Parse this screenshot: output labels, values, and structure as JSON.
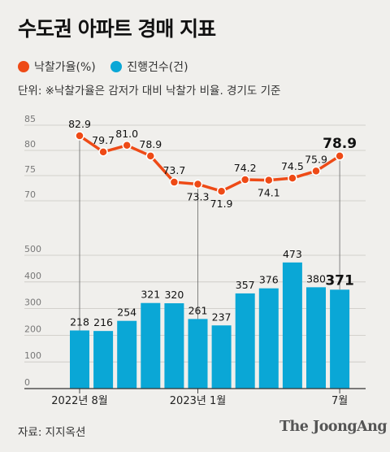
{
  "title": "수도권 아파트 경매 지표",
  "legend": [
    {
      "label": "낙찰가율(%)",
      "color": "#ee4a16"
    },
    {
      "label": "진행건수(건)",
      "color": "#0aa7d6"
    }
  ],
  "note": "단위: ※낙찰가율은 감저가 대비 낙찰가 비율. 경기도 기준",
  "source": "자료: 지지옥션",
  "brand": "The JoongAng",
  "chart_data": [
    {
      "type": "line",
      "name": "낙찰가율(%)",
      "color": "#ee4a16",
      "ylim": [
        65,
        85
      ],
      "yticks": [
        70,
        75,
        80,
        85
      ],
      "values": [
        82.9,
        79.7,
        81.0,
        78.9,
        73.7,
        73.3,
        71.9,
        74.2,
        74.1,
        74.5,
        75.9,
        78.9
      ],
      "labels": [
        "82.9",
        "79.7",
        "81.0",
        "78.9",
        "73.7",
        "73.3",
        "71.9",
        "74.2",
        "74.1",
        "74.5",
        "75.9",
        "78.9"
      ]
    },
    {
      "type": "bar",
      "name": "진행건수(건)",
      "color": "#0aa7d6",
      "ylim": [
        0,
        500
      ],
      "yticks": [
        0,
        100,
        200,
        300,
        400,
        500
      ],
      "values": [
        218,
        216,
        254,
        321,
        320,
        261,
        237,
        357,
        376,
        473,
        380,
        371
      ],
      "labels": [
        "218",
        "216",
        "",
        "321",
        "320",
        "261",
        "237",
        "357",
        "376",
        "473",
        "380",
        "371"
      ]
    }
  ],
  "x_labels": [
    {
      "index": 0,
      "text": "2022년 8월"
    },
    {
      "index": 5,
      "text": "2023년 1월"
    },
    {
      "index": 11,
      "text": "7월"
    }
  ],
  "extra_bar_label": {
    "index": 2,
    "text": "254"
  }
}
